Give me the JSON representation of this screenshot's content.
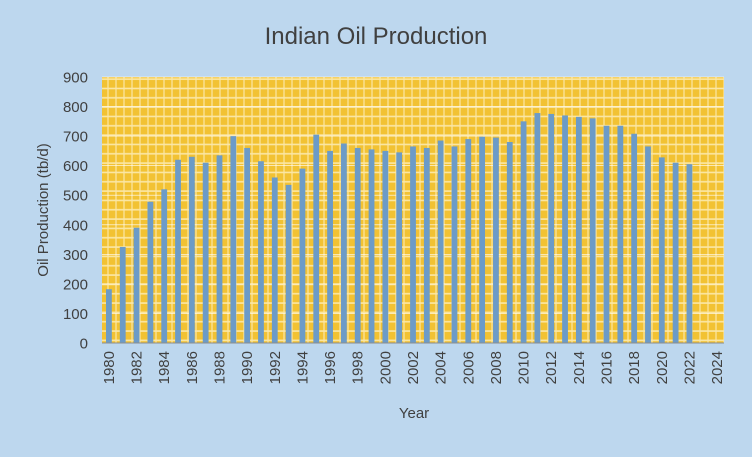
{
  "colors": {
    "background": "#bdd7ee",
    "plot_area": "#f2c233",
    "plot_pattern": "#ffffff",
    "bar": "#6c9bc7",
    "text": "#404040"
  },
  "chart_data": {
    "type": "bar",
    "title": "Indian Oil Production",
    "xlabel": "Year",
    "ylabel": "Oil Production (tb/d)",
    "ylim": [
      0,
      900
    ],
    "yticks": [
      0,
      100,
      200,
      300,
      400,
      500,
      600,
      700,
      800,
      900
    ],
    "x_tick_labels": [
      "1980",
      "1982",
      "1984",
      "1986",
      "1988",
      "1990",
      "1992",
      "1994",
      "1996",
      "1998",
      "2000",
      "2002",
      "2004",
      "2006",
      "2008",
      "2010",
      "2012",
      "2014",
      "2016",
      "2018",
      "2020",
      "2022",
      "2024"
    ],
    "categories": [
      1980,
      1981,
      1982,
      1983,
      1984,
      1985,
      1986,
      1987,
      1988,
      1989,
      1990,
      1991,
      1992,
      1993,
      1994,
      1995,
      1996,
      1997,
      1998,
      1999,
      2000,
      2001,
      2002,
      2003,
      2004,
      2005,
      2006,
      2007,
      2008,
      2009,
      2010,
      2011,
      2012,
      2013,
      2014,
      2015,
      2016,
      2017,
      2018,
      2019,
      2020,
      2021,
      2022,
      2023,
      2024
    ],
    "values": [
      182,
      325,
      390,
      478,
      520,
      620,
      630,
      610,
      635,
      700,
      660,
      615,
      560,
      535,
      590,
      705,
      650,
      675,
      660,
      655,
      650,
      645,
      665,
      660,
      685,
      665,
      690,
      698,
      695,
      680,
      750,
      778,
      775,
      770,
      765,
      760,
      735,
      735,
      708,
      665,
      628,
      610,
      605,
      null,
      null
    ],
    "grid": true,
    "legend": "none"
  }
}
